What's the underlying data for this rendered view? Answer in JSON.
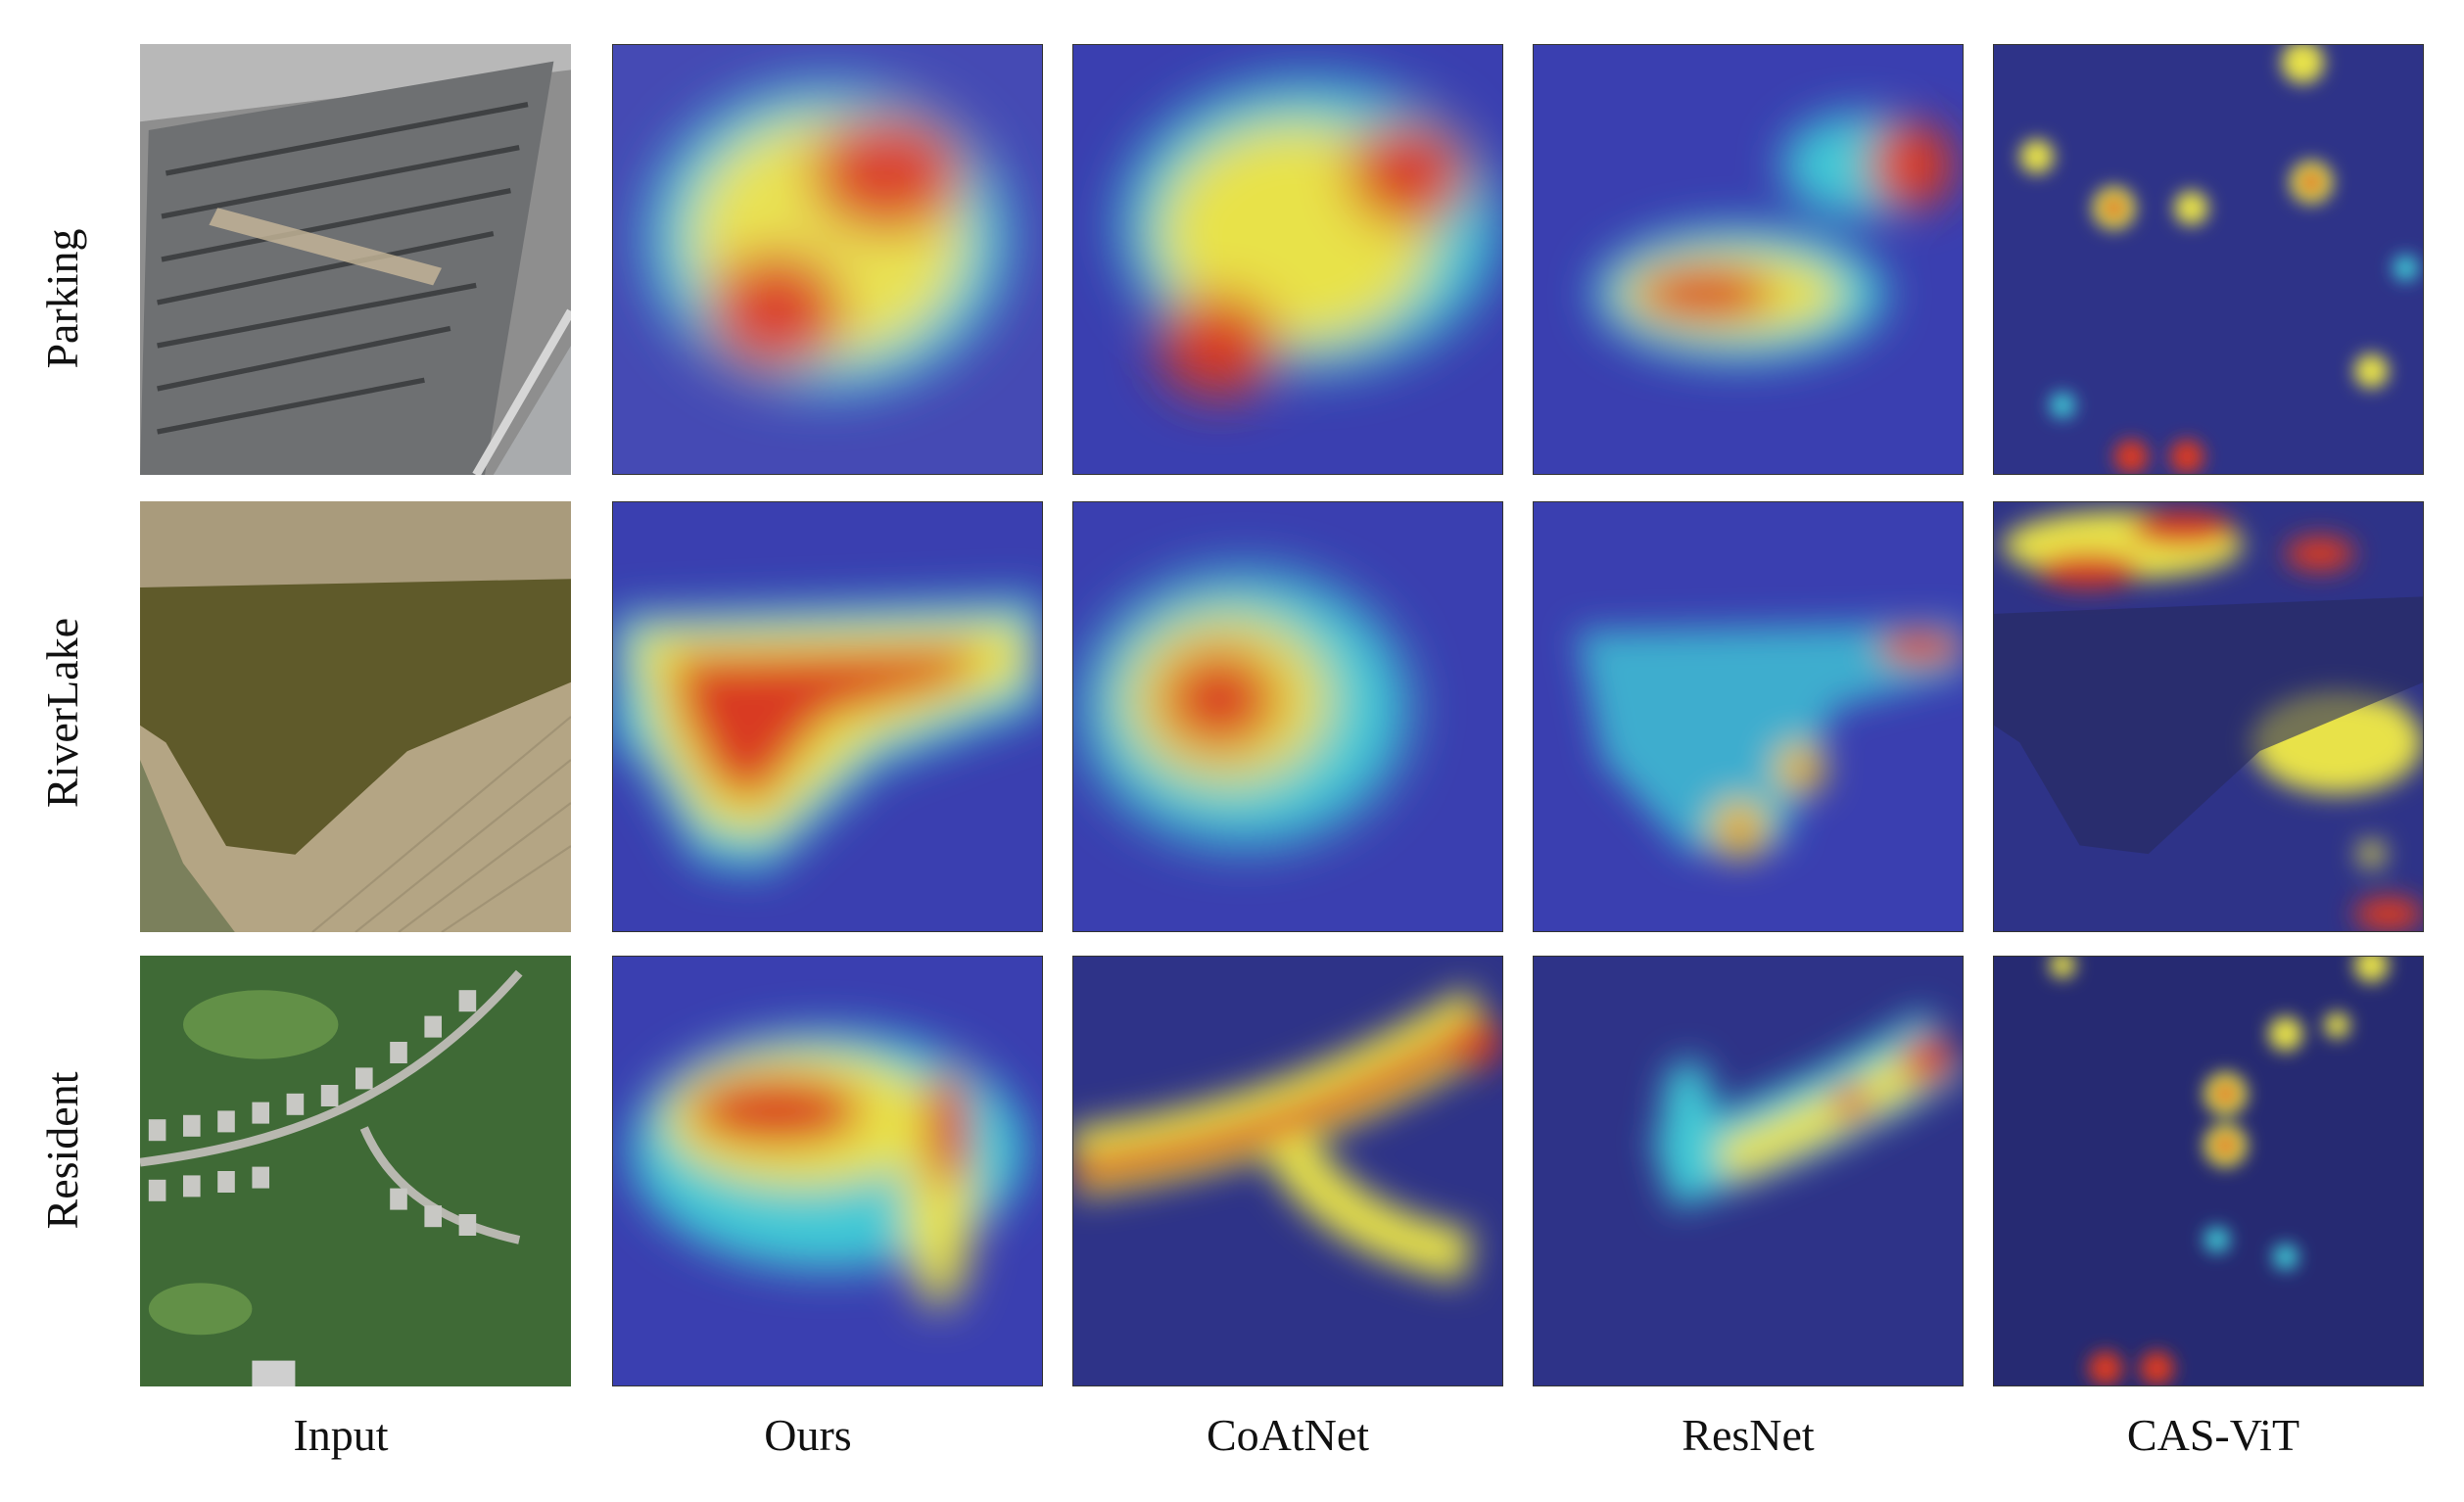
{
  "figure": {
    "rows": [
      {
        "label": "Parking"
      },
      {
        "label": "RiverLake"
      },
      {
        "label": "Resident"
      }
    ],
    "columns": [
      {
        "label": "Input"
      },
      {
        "label": "Ours"
      },
      {
        "label": "CoAtNet"
      },
      {
        "label": "ResNet"
      },
      {
        "label": "CAS-ViT"
      }
    ]
  },
  "colors": {
    "heat_low": "#2a2f9a",
    "heat_mid": "#38c4d8",
    "heat_high": "#f0e040",
    "heat_peak": "#d42a1a",
    "lake": "#5f5a2a",
    "field": "#b4a584",
    "grass": "#3f6a36"
  }
}
